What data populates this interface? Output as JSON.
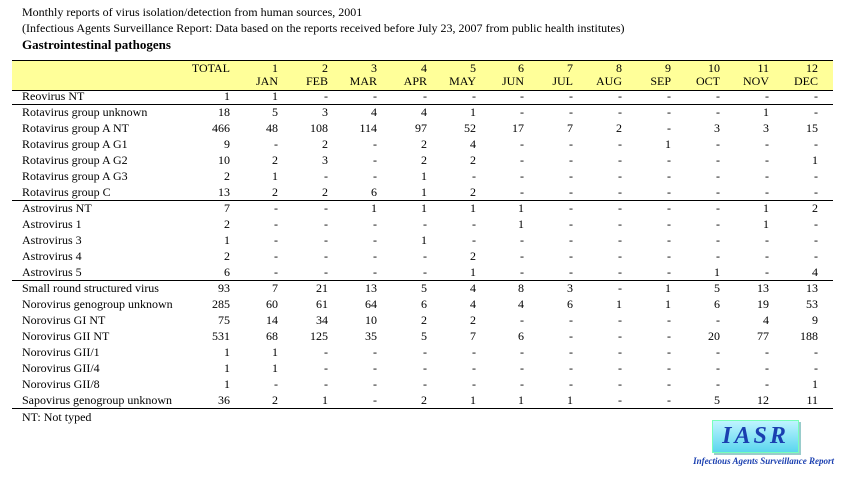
{
  "header": {
    "title": "Monthly reports of virus isolation/detection from human sources, 2001",
    "subtitle": "(Infectious Agents Surveillance Report: Data based on the reports received before July 23, 2007 from public health institutes)",
    "section": "Gastrointestinal pathogens"
  },
  "table": {
    "columns": [
      "TOTAL",
      "1",
      "2",
      "3",
      "4",
      "5",
      "6",
      "7",
      "8",
      "9",
      "10",
      "11",
      "12"
    ],
    "months": [
      "JAN",
      "FEB",
      "MAR",
      "APR",
      "MAY",
      "JUN",
      "JUL",
      "AUG",
      "SEP",
      "OCT",
      "NOV",
      "DEC"
    ],
    "groups": [
      [
        [
          "Reovirus NT",
          1,
          1,
          "-",
          "-",
          "-",
          "-",
          "-",
          "-",
          "-",
          "-",
          "-",
          "-",
          "-"
        ]
      ],
      [
        [
          "Rotavirus group unknown",
          18,
          5,
          3,
          4,
          4,
          1,
          "-",
          "-",
          "-",
          "-",
          "-",
          1,
          "-"
        ],
        [
          "Rotavirus group A NT",
          466,
          48,
          108,
          114,
          97,
          52,
          17,
          7,
          2,
          "-",
          3,
          3,
          15
        ],
        [
          "Rotavirus group A G1",
          9,
          "-",
          2,
          "-",
          2,
          4,
          "-",
          "-",
          "-",
          1,
          "-",
          "-",
          "-"
        ],
        [
          "Rotavirus group A G2",
          10,
          2,
          3,
          "-",
          2,
          2,
          "-",
          "-",
          "-",
          "-",
          "-",
          "-",
          1
        ],
        [
          "Rotavirus group A G3",
          2,
          1,
          "-",
          "-",
          1,
          "-",
          "-",
          "-",
          "-",
          "-",
          "-",
          "-",
          "-"
        ],
        [
          "Rotavirus group C",
          13,
          2,
          2,
          6,
          1,
          2,
          "-",
          "-",
          "-",
          "-",
          "-",
          "-",
          "-"
        ]
      ],
      [
        [
          "Astrovirus NT",
          7,
          "-",
          "-",
          1,
          1,
          1,
          1,
          "-",
          "-",
          "-",
          "-",
          1,
          2
        ],
        [
          "Astrovirus 1",
          2,
          "-",
          "-",
          "-",
          "-",
          "-",
          1,
          "-",
          "-",
          "-",
          "-",
          1,
          "-"
        ],
        [
          "Astrovirus 3",
          1,
          "-",
          "-",
          "-",
          1,
          "-",
          "-",
          "-",
          "-",
          "-",
          "-",
          "-",
          "-"
        ],
        [
          "Astrovirus 4",
          2,
          "-",
          "-",
          "-",
          "-",
          2,
          "-",
          "-",
          "-",
          "-",
          "-",
          "-",
          "-"
        ],
        [
          "Astrovirus 5",
          6,
          "-",
          "-",
          "-",
          "-",
          1,
          "-",
          "-",
          "-",
          "-",
          1,
          "-",
          4
        ]
      ],
      [
        [
          "Small round structured virus",
          93,
          7,
          21,
          13,
          5,
          4,
          8,
          3,
          "-",
          1,
          5,
          13,
          13
        ],
        [
          "Norovirus genogroup unknown",
          285,
          60,
          61,
          64,
          6,
          4,
          4,
          6,
          1,
          1,
          6,
          19,
          53
        ],
        [
          "Norovirus GI NT",
          75,
          14,
          34,
          10,
          2,
          2,
          "-",
          "-",
          "-",
          "-",
          "-",
          4,
          9
        ],
        [
          "Norovirus GII NT",
          531,
          68,
          125,
          35,
          5,
          7,
          6,
          "-",
          "-",
          "-",
          20,
          77,
          188
        ],
        [
          "Norovirus GII/1",
          1,
          1,
          "-",
          "-",
          "-",
          "-",
          "-",
          "-",
          "-",
          "-",
          "-",
          "-",
          "-"
        ],
        [
          "Norovirus GII/4",
          1,
          1,
          "-",
          "-",
          "-",
          "-",
          "-",
          "-",
          "-",
          "-",
          "-",
          "-",
          "-"
        ],
        [
          "Norovirus GII/8",
          1,
          "-",
          "-",
          "-",
          "-",
          "-",
          "-",
          "-",
          "-",
          "-",
          "-",
          "-",
          1
        ],
        [
          "Sapovirus genogroup unknown",
          36,
          2,
          1,
          "-",
          2,
          1,
          1,
          1,
          "-",
          "-",
          5,
          12,
          11
        ]
      ]
    ]
  },
  "footnote": "NT: Not typed",
  "logo": {
    "text": "IASR",
    "caption": "Infectious Agents Surveillance Report"
  }
}
